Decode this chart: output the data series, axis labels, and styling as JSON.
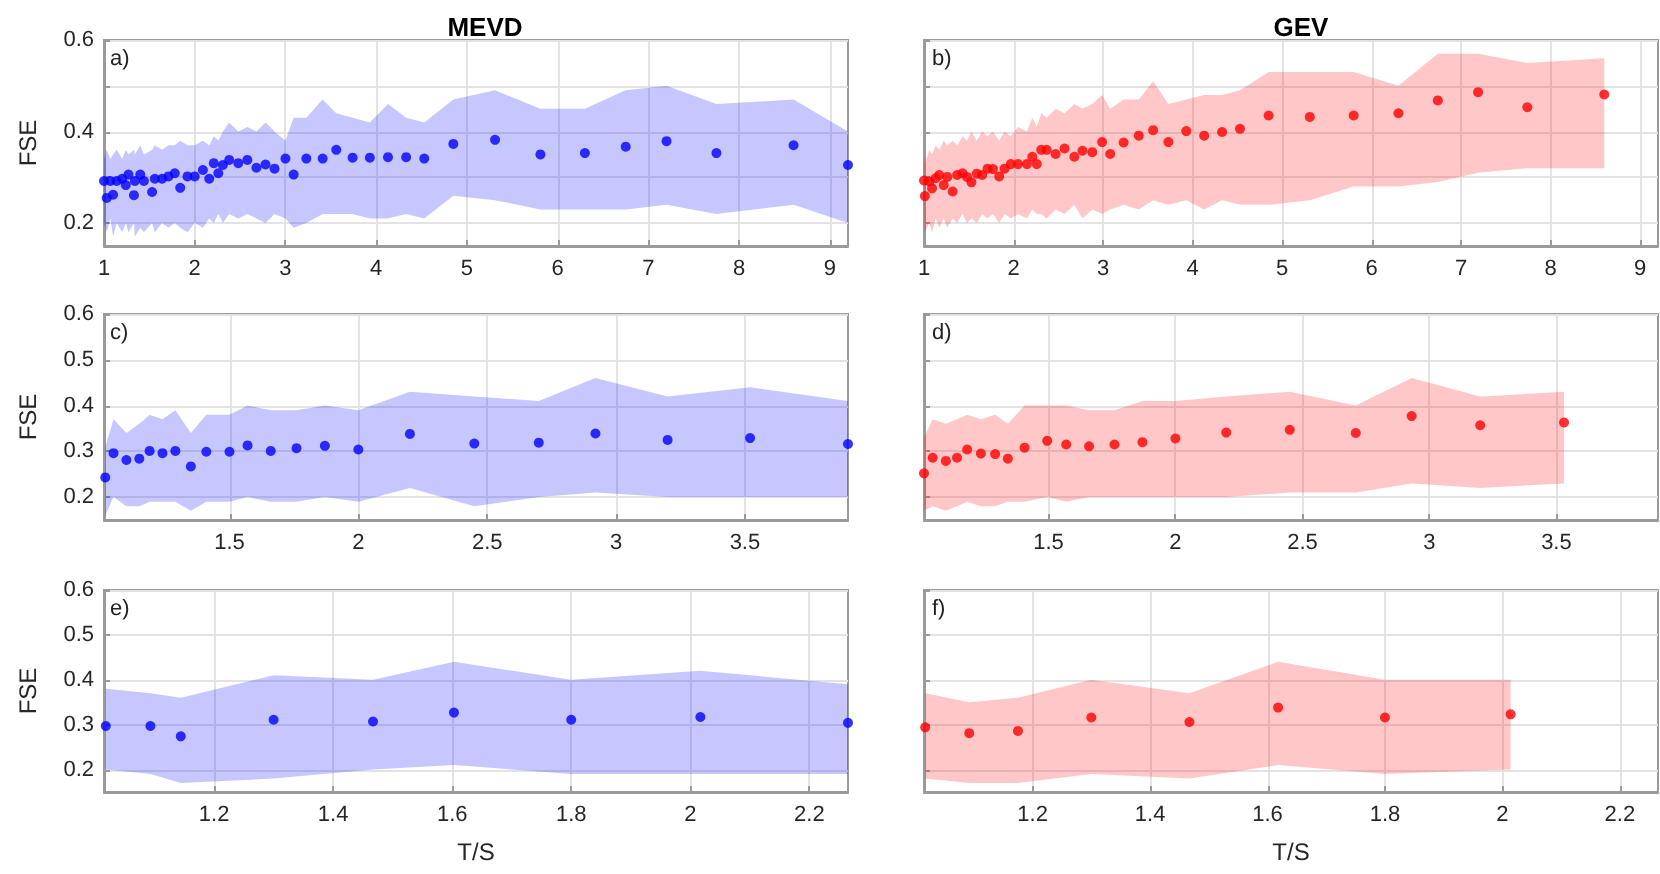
{
  "chart_data": [
    {
      "type": "scatter",
      "title": "MEVD",
      "ylabel": "FSE",
      "annotations": [
        "a)"
      ],
      "grid": true,
      "marker": "circle",
      "xlim": [
        1,
        9.2
      ],
      "xticks": [
        1,
        2,
        3,
        4,
        5,
        6,
        7,
        8,
        9
      ],
      "ylim": [
        0.15,
        0.6
      ],
      "yticks": [
        0.2,
        {
          "value": 0.3,
          "label": null
        },
        0.4,
        {
          "value": 0.5,
          "label": null
        },
        0.6
      ],
      "series": [
        {
          "color": "#0000ff",
          "x": [
            1.0,
            1.03,
            1.07,
            1.1,
            1.14,
            1.2,
            1.24,
            1.27,
            1.33,
            1.34,
            1.4,
            1.44,
            1.53,
            1.56,
            1.64,
            1.71,
            1.78,
            1.84,
            1.92,
            2.0,
            2.09,
            2.16,
            2.21,
            2.26,
            2.31,
            2.38,
            2.48,
            2.58,
            2.68,
            2.78,
            2.88,
            3.0,
            3.09,
            3.23,
            3.41,
            3.56,
            3.74,
            3.93,
            4.13,
            4.33,
            4.53,
            4.85,
            5.31,
            5.81,
            6.3,
            6.75,
            7.2,
            7.75,
            8.6,
            9.2
          ],
          "values": [
            0.292,
            0.255,
            0.292,
            0.262,
            0.292,
            0.297,
            0.283,
            0.306,
            0.261,
            0.292,
            0.306,
            0.292,
            0.268,
            0.297,
            0.297,
            0.302,
            0.309,
            0.277,
            0.302,
            0.302,
            0.316,
            0.297,
            0.331,
            0.309,
            0.327,
            0.338,
            0.331,
            0.338,
            0.321,
            0.328,
            0.319,
            0.341,
            0.306,
            0.341,
            0.341,
            0.36,
            0.343,
            0.343,
            0.344,
            0.344,
            0.341,
            0.373,
            0.382,
            0.35,
            0.353,
            0.367,
            0.379,
            0.353,
            0.37,
            0.327
          ],
          "upper": [
            0.34,
            0.36,
            0.34,
            0.35,
            0.36,
            0.34,
            0.36,
            0.35,
            0.36,
            0.35,
            0.37,
            0.35,
            0.36,
            0.37,
            0.36,
            0.37,
            0.37,
            0.38,
            0.37,
            0.37,
            0.38,
            0.37,
            0.39,
            0.38,
            0.4,
            0.42,
            0.4,
            0.41,
            0.4,
            0.42,
            0.4,
            0.38,
            0.43,
            0.43,
            0.47,
            0.44,
            0.43,
            0.42,
            0.46,
            0.43,
            0.42,
            0.47,
            0.49,
            0.45,
            0.45,
            0.49,
            0.5,
            0.46,
            0.47,
            0.4
          ],
          "lower": [
            0.2,
            0.18,
            0.21,
            0.17,
            0.2,
            0.18,
            0.2,
            0.18,
            0.2,
            0.17,
            0.19,
            0.18,
            0.2,
            0.18,
            0.2,
            0.19,
            0.2,
            0.19,
            0.18,
            0.2,
            0.19,
            0.21,
            0.2,
            0.22,
            0.2,
            0.22,
            0.21,
            0.22,
            0.21,
            0.2,
            0.22,
            0.21,
            0.19,
            0.2,
            0.22,
            0.22,
            0.22,
            0.21,
            0.21,
            0.22,
            0.21,
            0.26,
            0.25,
            0.23,
            0.23,
            0.23,
            0.24,
            0.22,
            0.24,
            0.2
          ]
        }
      ]
    },
    {
      "type": "scatter",
      "title": "GEV",
      "annotations": [
        "b)"
      ],
      "grid": true,
      "marker": "circle",
      "tick_labels": "x",
      "xlim": [
        1,
        9.2
      ],
      "xticks": [
        1,
        2,
        3,
        4,
        5,
        6,
        7,
        8,
        9
      ],
      "ylim": [
        0.15,
        0.6
      ],
      "yticks": [
        0.2,
        0.3,
        0.4,
        0.5,
        0.6
      ],
      "series": [
        {
          "color": "#ff0000",
          "x": [
            1.0,
            1.01,
            1.06,
            1.09,
            1.13,
            1.17,
            1.22,
            1.26,
            1.32,
            1.37,
            1.43,
            1.48,
            1.53,
            1.59,
            1.65,
            1.71,
            1.77,
            1.84,
            1.9,
            1.97,
            2.05,
            2.15,
            2.21,
            2.26,
            2.31,
            2.37,
            2.47,
            2.57,
            2.68,
            2.77,
            2.88,
            2.99,
            3.08,
            3.23,
            3.4,
            3.56,
            3.73,
            3.93,
            4.13,
            4.33,
            4.53,
            4.85,
            5.31,
            5.8,
            6.3,
            6.74,
            7.19,
            7.74,
            8.6
          ],
          "values": [
            0.293,
            0.259,
            0.291,
            0.276,
            0.298,
            0.305,
            0.283,
            0.301,
            0.269,
            0.305,
            0.309,
            0.301,
            0.289,
            0.308,
            0.305,
            0.319,
            0.318,
            0.302,
            0.319,
            0.329,
            0.329,
            0.329,
            0.345,
            0.329,
            0.36,
            0.36,
            0.351,
            0.363,
            0.345,
            0.358,
            0.355,
            0.377,
            0.351,
            0.376,
            0.391,
            0.403,
            0.377,
            0.401,
            0.391,
            0.399,
            0.406,
            0.435,
            0.432,
            0.435,
            0.44,
            0.468,
            0.486,
            0.453,
            0.481
          ],
          "upper": [
            0.35,
            0.33,
            0.36,
            0.35,
            0.37,
            0.36,
            0.38,
            0.37,
            0.38,
            0.37,
            0.39,
            0.38,
            0.4,
            0.38,
            0.4,
            0.39,
            0.4,
            0.38,
            0.4,
            0.39,
            0.41,
            0.4,
            0.43,
            0.41,
            0.44,
            0.43,
            0.45,
            0.44,
            0.46,
            0.45,
            0.46,
            0.48,
            0.45,
            0.47,
            0.47,
            0.51,
            0.46,
            0.47,
            0.48,
            0.48,
            0.49,
            0.53,
            0.53,
            0.53,
            0.5,
            0.57,
            0.57,
            0.55,
            0.56
          ],
          "lower": [
            0.21,
            0.18,
            0.2,
            0.18,
            0.21,
            0.19,
            0.21,
            0.19,
            0.21,
            0.2,
            0.22,
            0.2,
            0.21,
            0.2,
            0.22,
            0.21,
            0.22,
            0.2,
            0.22,
            0.21,
            0.22,
            0.21,
            0.23,
            0.22,
            0.22,
            0.21,
            0.23,
            0.22,
            0.24,
            0.21,
            0.23,
            0.22,
            0.23,
            0.24,
            0.23,
            0.25,
            0.24,
            0.25,
            0.23,
            0.25,
            0.24,
            0.24,
            0.25,
            0.28,
            0.28,
            0.29,
            0.31,
            0.32,
            0.32
          ]
        }
      ]
    },
    {
      "type": "scatter",
      "ylabel": "FSE",
      "annotations": [
        "c)"
      ],
      "grid": true,
      "marker": "circle",
      "xlim": [
        1.013,
        3.9
      ],
      "xticks": [
        1.5,
        2,
        2.5,
        3,
        3.5
      ],
      "ylim": [
        0.15,
        0.6
      ],
      "yticks": [
        0.2,
        0.3,
        0.4,
        0.5,
        0.6
      ],
      "series": [
        {
          "color": "#0000ff",
          "x": [
            1.018,
            1.05,
            1.1,
            1.15,
            1.19,
            1.24,
            1.29,
            1.35,
            1.41,
            1.5,
            1.57,
            1.66,
            1.76,
            1.87,
            2.0,
            2.2,
            2.45,
            2.7,
            2.92,
            3.2,
            3.52,
            3.9
          ],
          "values": [
            0.243,
            0.296,
            0.281,
            0.284,
            0.301,
            0.296,
            0.301,
            0.267,
            0.299,
            0.299,
            0.313,
            0.301,
            0.307,
            0.312,
            0.304,
            0.338,
            0.317,
            0.319,
            0.339,
            0.325,
            0.329,
            0.316
          ],
          "upper": [
            0.31,
            0.37,
            0.34,
            0.36,
            0.38,
            0.37,
            0.39,
            0.34,
            0.38,
            0.38,
            0.4,
            0.39,
            0.39,
            0.4,
            0.39,
            0.43,
            0.42,
            0.41,
            0.46,
            0.42,
            0.44,
            0.41
          ],
          "lower": [
            0.16,
            0.2,
            0.18,
            0.18,
            0.19,
            0.19,
            0.19,
            0.17,
            0.19,
            0.19,
            0.2,
            0.19,
            0.19,
            0.2,
            0.19,
            0.22,
            0.18,
            0.2,
            0.21,
            0.2,
            0.2,
            0.2
          ]
        }
      ]
    },
    {
      "type": "scatter",
      "annotations": [
        "d)"
      ],
      "grid": true,
      "marker": "circle",
      "tick_labels": "x",
      "xlim": [
        1.01,
        3.9
      ],
      "xticks": [
        1.5,
        2,
        2.5,
        3,
        3.5
      ],
      "ylim": [
        0.15,
        0.6
      ],
      "yticks": [
        0.2,
        0.3,
        0.4,
        0.5,
        0.6
      ],
      "series": [
        {
          "color": "#ff0000",
          "x": [
            1.01,
            1.044,
            1.096,
            1.14,
            1.18,
            1.234,
            1.29,
            1.34,
            1.406,
            1.495,
            1.57,
            1.66,
            1.76,
            1.87,
            2.0,
            2.2,
            2.45,
            2.71,
            2.93,
            3.2,
            3.53
          ],
          "values": [
            0.252,
            0.286,
            0.279,
            0.286,
            0.304,
            0.295,
            0.294,
            0.284,
            0.308,
            0.323,
            0.315,
            0.311,
            0.315,
            0.32,
            0.328,
            0.341,
            0.347,
            0.34,
            0.377,
            0.357,
            0.363
          ],
          "upper": [
            0.33,
            0.37,
            0.36,
            0.37,
            0.38,
            0.37,
            0.38,
            0.36,
            0.4,
            0.4,
            0.4,
            0.39,
            0.39,
            0.41,
            0.41,
            0.42,
            0.43,
            0.4,
            0.46,
            0.42,
            0.43
          ],
          "lower": [
            0.17,
            0.18,
            0.17,
            0.18,
            0.19,
            0.18,
            0.18,
            0.19,
            0.19,
            0.2,
            0.19,
            0.2,
            0.2,
            0.2,
            0.2,
            0.2,
            0.21,
            0.21,
            0.23,
            0.22,
            0.23
          ]
        }
      ]
    },
    {
      "type": "scatter",
      "ylabel": "FSE",
      "xlabel": "T/S",
      "annotations": [
        "e)"
      ],
      "grid": true,
      "marker": "circle",
      "xlim": [
        1.015,
        2.265
      ],
      "xticks": [
        1.2,
        1.4,
        1.6,
        1.8,
        2,
        2.2
      ],
      "ylim": [
        0.15,
        0.6
      ],
      "yticks": [
        0.2,
        0.3,
        0.4,
        0.5,
        0.6
      ],
      "series": [
        {
          "color": "#0000ff",
          "x": [
            1.018,
            1.093,
            1.144,
            1.3,
            1.467,
            1.603,
            1.8,
            2.017,
            2.265
          ],
          "values": [
            0.297,
            0.297,
            0.274,
            0.311,
            0.307,
            0.327,
            0.311,
            0.317,
            0.304
          ],
          "upper": [
            0.38,
            0.37,
            0.36,
            0.41,
            0.4,
            0.44,
            0.4,
            0.42,
            0.39
          ],
          "lower": [
            0.2,
            0.19,
            0.17,
            0.18,
            0.2,
            0.21,
            0.19,
            0.19,
            0.19
          ]
        }
      ]
    },
    {
      "type": "scatter",
      "xlabel": "T/S",
      "annotations": [
        "f)"
      ],
      "grid": true,
      "marker": "circle",
      "tick_labels": "x",
      "xlim": [
        1.015,
        2.265
      ],
      "xticks": [
        1.2,
        1.4,
        1.6,
        1.8,
        2,
        2.2
      ],
      "ylim": [
        0.15,
        0.6
      ],
      "yticks": [
        0.2,
        0.3,
        0.4,
        0.5,
        0.6
      ],
      "series": [
        {
          "color": "#ff0000",
          "x": [
            1.017,
            1.092,
            1.175,
            1.3,
            1.467,
            1.618,
            1.8,
            2.014
          ],
          "values": [
            0.294,
            0.281,
            0.286,
            0.316,
            0.306,
            0.338,
            0.316,
            0.323
          ],
          "upper": [
            0.37,
            0.35,
            0.36,
            0.4,
            0.37,
            0.44,
            0.4,
            0.4
          ],
          "lower": [
            0.18,
            0.17,
            0.17,
            0.19,
            0.18,
            0.21,
            0.19,
            0.2
          ]
        }
      ]
    }
  ]
}
